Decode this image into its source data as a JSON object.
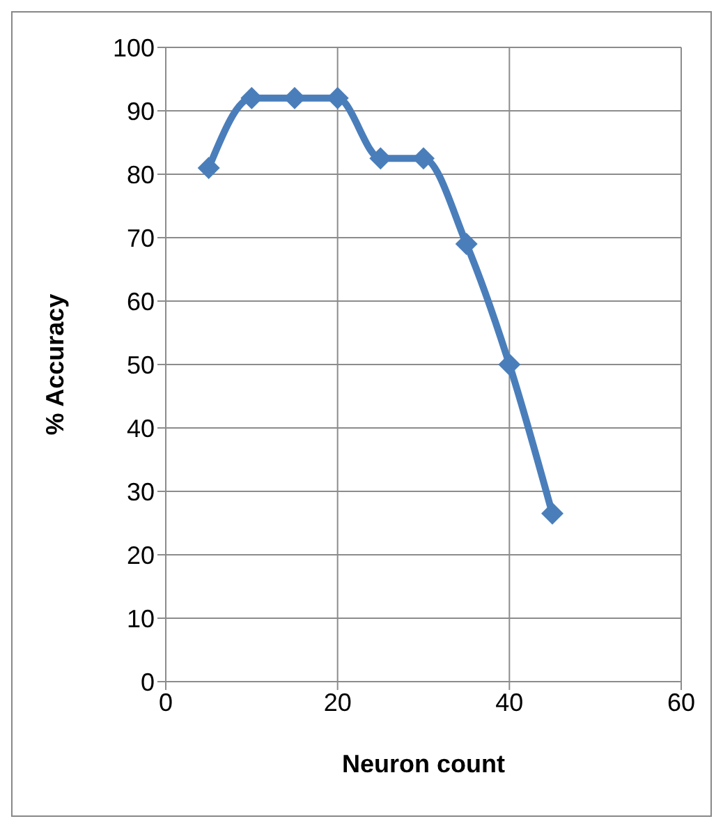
{
  "chart_data": {
    "type": "line",
    "xlabel": "Neuron count",
    "ylabel": "% Accuracy",
    "x": [
      5,
      10,
      15,
      20,
      25,
      30,
      35,
      40,
      45
    ],
    "series": [
      {
        "color": "#4a7ebb",
        "values": [
          81,
          92,
          92,
          92,
          82.5,
          82.5,
          69,
          50,
          26.5
        ]
      }
    ],
    "xlim": [
      0,
      60
    ],
    "xticks": [
      0,
      20,
      40,
      60
    ],
    "ylim": [
      0,
      100
    ],
    "yticks": [
      0,
      10,
      20,
      30,
      40,
      50,
      60,
      70,
      80,
      90,
      100
    ],
    "grid": true,
    "marker": "diamond",
    "line_style": "solid",
    "legend": false
  }
}
